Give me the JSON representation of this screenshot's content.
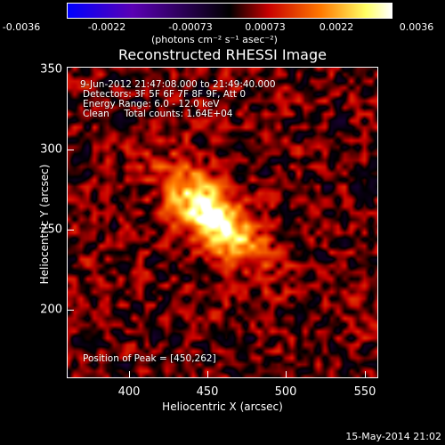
{
  "colorbar": {
    "ticks": [
      "-0.0036",
      "-0.0022",
      "-0.00073",
      "0.00073",
      "0.0022",
      "0.0036"
    ],
    "units": "(photons cm⁻² s⁻¹ asec⁻²)"
  },
  "title": "Reconstructed RHESSI Image",
  "info": {
    "time_range": "9-Jun-2012 21:47:08.000 to 21:49:40.000",
    "detectors": "Detectors: 3F 5F 6F 7F 8F 9F, Att 0",
    "energy": "Energy Range: 6.0 - 12.0 keV",
    "clean": "Clean     Total counts: 1.64E+04",
    "peak": "Position of Peak = [450,262]"
  },
  "chart_data": {
    "type": "heatmap",
    "title": "Reconstructed RHESSI Image",
    "xlabel": "Heliocentric X (arcsec)",
    "ylabel": "Heliocentric Y (arcsec)",
    "xlim": [
      360,
      555
    ],
    "ylim": [
      160,
      355
    ],
    "xticks": [
      "400",
      "450",
      "500",
      "550"
    ],
    "yticks": [
      "350",
      "300",
      "250",
      "200"
    ],
    "xtick_values": [
      400,
      450,
      500,
      550
    ],
    "ytick_values": [
      350,
      300,
      250,
      200
    ],
    "zlim": [
      -0.0036,
      0.0036
    ],
    "peak": [
      450,
      262
    ],
    "colormap": [
      "#0000ff",
      "#5a00b4",
      "#000000",
      "#c80000",
      "#ff7800",
      "#ffff64",
      "#ffffff"
    ]
  },
  "footer": "15-May-2014 21:02"
}
